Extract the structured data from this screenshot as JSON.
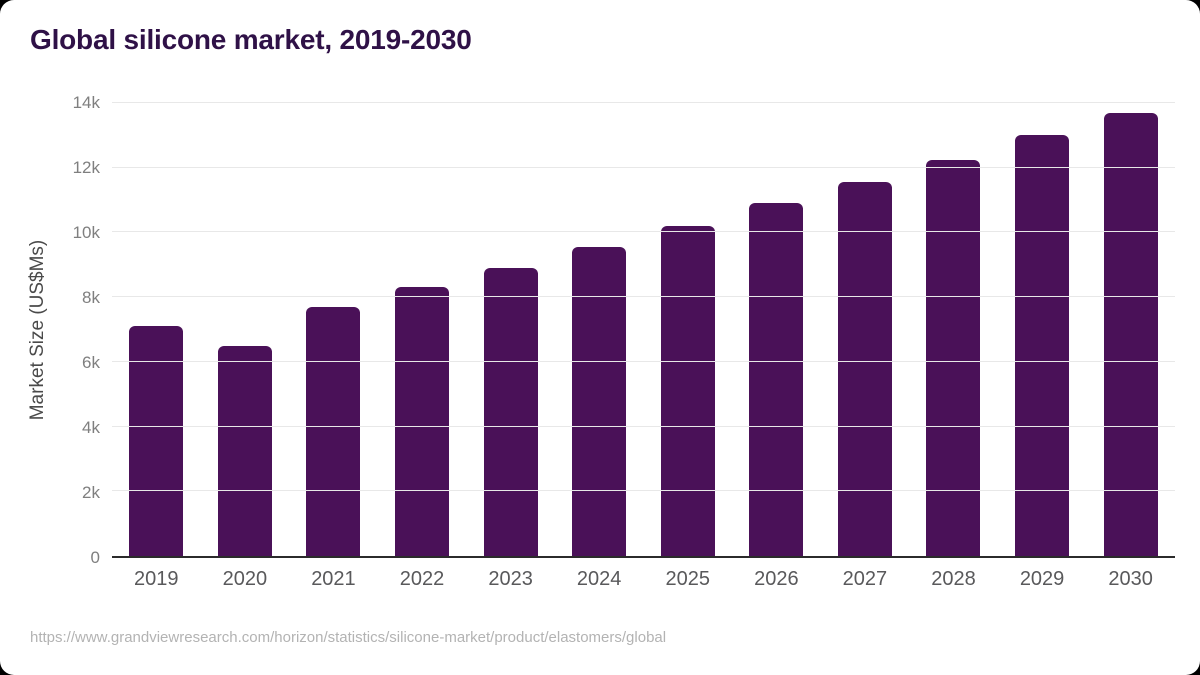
{
  "page": {
    "title": "Global silicone market, 2019-2030",
    "source_url": "https://www.grandviewresearch.com/horizon/statistics/silicone-market/product/elastomers/global"
  },
  "colors": {
    "bar": "#4a1158",
    "title": "#2f1147",
    "gridline": "#e8e8e8",
    "axis_line": "#2b2b2b",
    "ytick_label": "#7f7f7f",
    "xtick_label": "#59595b",
    "source_text": "#b3b3b3",
    "background": "#ffffff"
  },
  "chart_data": {
    "type": "bar",
    "title": "Global silicone market, 2019-2030",
    "categories": [
      "2019",
      "2020",
      "2021",
      "2022",
      "2023",
      "2024",
      "2025",
      "2026",
      "2027",
      "2028",
      "2029",
      "2030"
    ],
    "values": [
      7100,
      6500,
      7700,
      8300,
      8900,
      9550,
      10200,
      10900,
      11550,
      12250,
      13000,
      13700
    ],
    "xlabel": "",
    "ylabel": "Market Size (US$Ms)",
    "ylim": [
      0,
      14000
    ],
    "ytick_values": [
      0,
      2000,
      4000,
      6000,
      8000,
      10000,
      12000,
      14000
    ],
    "ytick_labels": [
      "0",
      "2k",
      "4k",
      "6k",
      "8k",
      "10k",
      "12k",
      "14k"
    ],
    "grid": "horizontal",
    "legend": "none",
    "bar_color": "#4a1158",
    "source": "https://www.grandviewresearch.com/horizon/statistics/silicone-market/product/elastomers/global"
  }
}
